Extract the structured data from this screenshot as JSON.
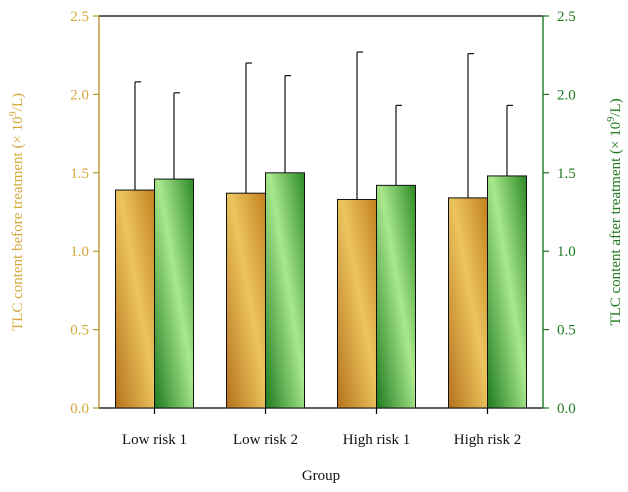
{
  "chart_data": {
    "type": "bar",
    "categories": [
      "Low risk 1",
      "Low risk 2",
      "High risk 1",
      "High risk 2"
    ],
    "series": [
      {
        "name": "TLC content before treatment",
        "axis": "left",
        "values": [
          1.39,
          1.37,
          1.33,
          1.34
        ],
        "error_upper": [
          0.69,
          0.83,
          0.94,
          0.92
        ],
        "color": "#c98a2e"
      },
      {
        "name": "TLC content after treatment",
        "axis": "right",
        "values": [
          1.46,
          1.5,
          1.42,
          1.48
        ],
        "error_upper": [
          0.55,
          0.62,
          0.51,
          0.45
        ],
        "color": "#3a8f2a"
      }
    ],
    "xlabel": "Group",
    "ylabel_left_prefix": "TLC content before treatment (× 10",
    "ylabel_left_sup": "9",
    "ylabel_left_suffix": "/L)",
    "ylabel_right_prefix": "TLC content after treatment (× 10",
    "ylabel_right_sup": "9",
    "ylabel_right_suffix": "/L)",
    "ylim": [
      0,
      2.5
    ],
    "yticks": [
      "0.0",
      "0.5",
      "1.0",
      "1.5",
      "2.0",
      "2.5"
    ],
    "left_axis_color": "#b8962e",
    "right_axis_color": "#1f7a1f",
    "left_label_color": "#d4a93a",
    "right_label_color": "#1f7a1f",
    "grid": false,
    "legend": "none"
  }
}
